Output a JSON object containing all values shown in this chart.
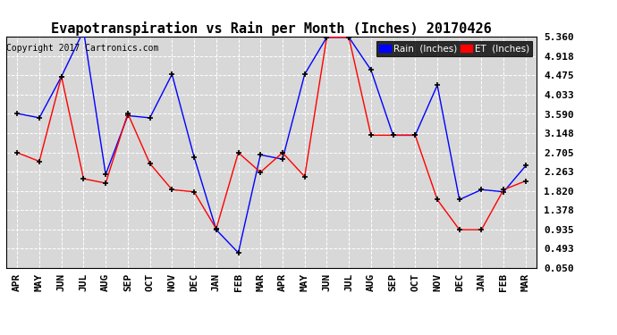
{
  "title": "Evapotranspiration vs Rain per Month (Inches) 20170426",
  "copyright": "Copyright 2017 Cartronics.com",
  "months": [
    "APR",
    "MAY",
    "JUN",
    "JUL",
    "AUG",
    "SEP",
    "OCT",
    "NOV",
    "DEC",
    "JAN",
    "FEB",
    "MAR",
    "APR",
    "MAY",
    "JUN",
    "JUL",
    "AUG",
    "SEP",
    "OCT",
    "NOV",
    "DEC",
    "JAN",
    "FEB",
    "MAR"
  ],
  "rain": [
    3.6,
    3.5,
    4.45,
    5.5,
    2.2,
    3.55,
    3.5,
    4.5,
    2.6,
    0.93,
    0.4,
    2.65,
    2.55,
    4.5,
    5.35,
    5.35,
    4.6,
    3.1,
    3.1,
    4.25,
    1.62,
    1.85,
    1.8,
    2.4
  ],
  "et": [
    2.7,
    2.5,
    4.45,
    2.1,
    2.0,
    3.6,
    2.45,
    1.85,
    1.8,
    0.95,
    2.7,
    2.25,
    2.7,
    2.15,
    5.35,
    5.35,
    3.1,
    3.1,
    3.1,
    1.62,
    0.93,
    0.93,
    1.85,
    2.05
  ],
  "rain_color": "#0000ff",
  "et_color": "#ff0000",
  "background_color": "#ffffff",
  "plot_bg_color": "#d8d8d8",
  "grid_color": "#ffffff",
  "yticks": [
    0.05,
    0.493,
    0.935,
    1.378,
    1.82,
    2.263,
    2.705,
    3.148,
    3.59,
    4.033,
    4.475,
    4.918,
    5.36
  ],
  "ylim_min": 0.05,
  "ylim_max": 5.36,
  "title_fontsize": 11,
  "tick_fontsize": 8,
  "copyright_fontsize": 7
}
